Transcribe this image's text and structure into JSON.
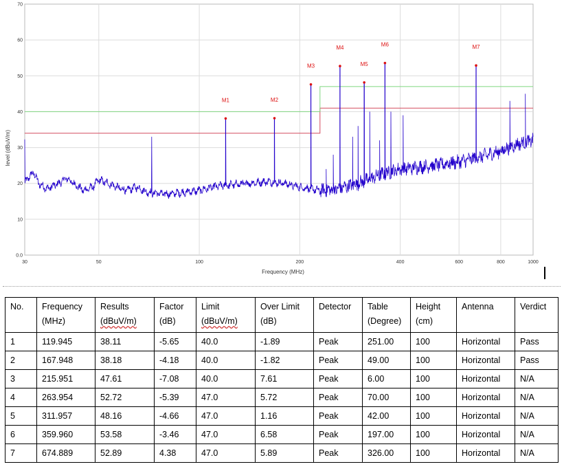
{
  "colors": {
    "trace": "#2200cc",
    "limit_line": "#d44a5e",
    "limit_upper_line": "#7fd67f",
    "marker": "#dd1111",
    "grid": "#dcdcdc"
  },
  "chart_data": {
    "type": "line",
    "xlabel": "Frequency (MHz)",
    "ylabel": "level (dBuV/m)",
    "x_scale": "log",
    "xlim": [
      30,
      1000
    ],
    "ylim": [
      0,
      70
    ],
    "x_ticks": [
      30,
      50,
      100,
      200,
      400,
      600,
      800,
      1000
    ],
    "y_ticks": [
      0,
      10,
      20,
      30,
      40,
      50,
      60,
      70
    ],
    "y_tick_labels": [
      "0.0",
      "10",
      "20",
      "30",
      "40",
      "50",
      "60",
      "70"
    ],
    "grid": true,
    "limit_lines": [
      {
        "values": [
          [
            30,
            34
          ],
          [
            230,
            34
          ],
          [
            230,
            41
          ],
          [
            1000,
            41
          ]
        ]
      },
      {
        "values": [
          [
            30,
            40
          ],
          [
            230,
            40
          ],
          [
            230,
            47
          ],
          [
            1000,
            47
          ]
        ]
      }
    ],
    "markers": [
      {
        "label": "M1",
        "x": 119.945,
        "y": 38.11
      },
      {
        "label": "M2",
        "x": 167.948,
        "y": 38.18
      },
      {
        "label": "M3",
        "x": 215.951,
        "y": 47.61
      },
      {
        "label": "M4",
        "x": 263.954,
        "y": 52.72
      },
      {
        "label": "M5",
        "x": 311.957,
        "y": 48.16
      },
      {
        "label": "M6",
        "x": 359.96,
        "y": 53.58
      },
      {
        "label": "M7",
        "x": 674.889,
        "y": 52.89
      }
    ],
    "extra_peaks": [
      {
        "x": 72,
        "y": 33
      },
      {
        "x": 240,
        "y": 24
      },
      {
        "x": 252,
        "y": 28
      },
      {
        "x": 288,
        "y": 33
      },
      {
        "x": 299,
        "y": 36
      },
      {
        "x": 324,
        "y": 40
      },
      {
        "x": 347,
        "y": 32
      },
      {
        "x": 375,
        "y": 40
      },
      {
        "x": 408,
        "y": 39
      },
      {
        "x": 852,
        "y": 43
      },
      {
        "x": 948,
        "y": 45
      }
    ],
    "trace_profile": [
      {
        "x": 30,
        "y": 20
      },
      {
        "x": 31,
        "y": 22
      },
      {
        "x": 32,
        "y": 23
      },
      {
        "x": 33,
        "y": 20
      },
      {
        "x": 35,
        "y": 18.5
      },
      {
        "x": 36,
        "y": 19
      },
      {
        "x": 38,
        "y": 20
      },
      {
        "x": 40,
        "y": 21.5
      },
      {
        "x": 42,
        "y": 20
      },
      {
        "x": 45,
        "y": 18
      },
      {
        "x": 48,
        "y": 19
      },
      {
        "x": 50,
        "y": 21
      },
      {
        "x": 55,
        "y": 19.5
      },
      {
        "x": 60,
        "y": 18
      },
      {
        "x": 65,
        "y": 19
      },
      {
        "x": 70,
        "y": 17.5
      },
      {
        "x": 80,
        "y": 17
      },
      {
        "x": 90,
        "y": 17.5
      },
      {
        "x": 100,
        "y": 18
      },
      {
        "x": 110,
        "y": 19
      },
      {
        "x": 120,
        "y": 19.5
      },
      {
        "x": 140,
        "y": 20
      },
      {
        "x": 160,
        "y": 20.5
      },
      {
        "x": 180,
        "y": 20
      },
      {
        "x": 200,
        "y": 19
      },
      {
        "x": 230,
        "y": 18
      },
      {
        "x": 260,
        "y": 18.5
      },
      {
        "x": 300,
        "y": 20
      },
      {
        "x": 350,
        "y": 22.5
      },
      {
        "x": 400,
        "y": 24
      },
      {
        "x": 450,
        "y": 24.5
      },
      {
        "x": 500,
        "y": 25
      },
      {
        "x": 600,
        "y": 26
      },
      {
        "x": 700,
        "y": 27.5
      },
      {
        "x": 800,
        "y": 29
      },
      {
        "x": 900,
        "y": 31
      },
      {
        "x": 1000,
        "y": 32
      }
    ]
  },
  "table": {
    "headers": [
      {
        "top": "No.",
        "bottom": ""
      },
      {
        "top": "Frequency",
        "bottom": "(MHz)"
      },
      {
        "top": "Results",
        "bottom": "(dBuV/m)"
      },
      {
        "top": "Factor",
        "bottom": "(dB)"
      },
      {
        "top": "Limit",
        "bottom": "(dBuV/m)"
      },
      {
        "top": "Over Limit",
        "bottom": "(dB)"
      },
      {
        "top": "Detector",
        "bottom": ""
      },
      {
        "top": "Table",
        "bottom": "(Degree)"
      },
      {
        "top": "Height",
        "bottom": "(cm)"
      },
      {
        "top": "Antenna",
        "bottom": ""
      },
      {
        "top": "Verdict",
        "bottom": ""
      }
    ],
    "rows": [
      [
        "1",
        "119.945",
        "38.11",
        "-5.65",
        "40.0",
        "-1.89",
        "Peak",
        "251.00",
        "100",
        "Horizontal",
        "Pass"
      ],
      [
        "2",
        "167.948",
        "38.18",
        "-4.18",
        "40.0",
        "-1.82",
        "Peak",
        "49.00",
        "100",
        "Horizontal",
        "Pass"
      ],
      [
        "3",
        "215.951",
        "47.61",
        "-7.08",
        "40.0",
        "7.61",
        "Peak",
        "6.00",
        "100",
        "Horizontal",
        "N/A"
      ],
      [
        "4",
        "263.954",
        "52.72",
        "-5.39",
        "47.0",
        "5.72",
        "Peak",
        "70.00",
        "100",
        "Horizontal",
        "N/A"
      ],
      [
        "5",
        "311.957",
        "48.16",
        "-4.66",
        "47.0",
        "1.16",
        "Peak",
        "42.00",
        "100",
        "Horizontal",
        "N/A"
      ],
      [
        "6",
        "359.960",
        "53.58",
        "-3.46",
        "47.0",
        "6.58",
        "Peak",
        "197.00",
        "100",
        "Horizontal",
        "N/A"
      ],
      [
        "7",
        "674.889",
        "52.89",
        "4.38",
        "47.0",
        "5.89",
        "Peak",
        "326.00",
        "100",
        "Horizontal",
        "N/A"
      ]
    ]
  }
}
